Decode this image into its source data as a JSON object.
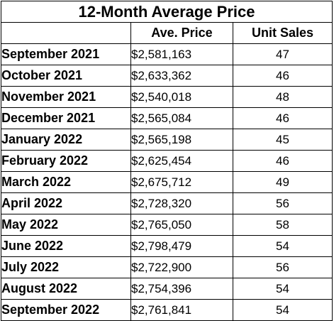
{
  "table": {
    "title": "12-Month Average Price",
    "headers": [
      "",
      "Ave. Price",
      "Unit Sales"
    ],
    "rows": [
      {
        "month": "September 2021",
        "price": "$2,581,163",
        "sales": "47"
      },
      {
        "month": "October 2021",
        "price": "$2,633,362",
        "sales": "46"
      },
      {
        "month": "November 2021",
        "price": "$2,540,018",
        "sales": "48"
      },
      {
        "month": "December 2021",
        "price": "$2,565,084",
        "sales": "46"
      },
      {
        "month": "January 2022",
        "price": "$2,565,198",
        "sales": "45"
      },
      {
        "month": "February 2022",
        "price": "$2,625,454",
        "sales": "46"
      },
      {
        "month": "March 2022",
        "price": "$2,675,712",
        "sales": "49"
      },
      {
        "month": "April 2022",
        "price": "$2,728,320",
        "sales": "56"
      },
      {
        "month": "May 2022",
        "price": "$2,765,050",
        "sales": "58"
      },
      {
        "month": "June 2022",
        "price": "$2,798,479",
        "sales": "54"
      },
      {
        "month": "July 2022",
        "price": "$2,722,900",
        "sales": "56"
      },
      {
        "month": "August 2022",
        "price": "$2,754,396",
        "sales": "54"
      },
      {
        "month": "September 2022",
        "price": "$2,761,841",
        "sales": "54"
      }
    ]
  }
}
